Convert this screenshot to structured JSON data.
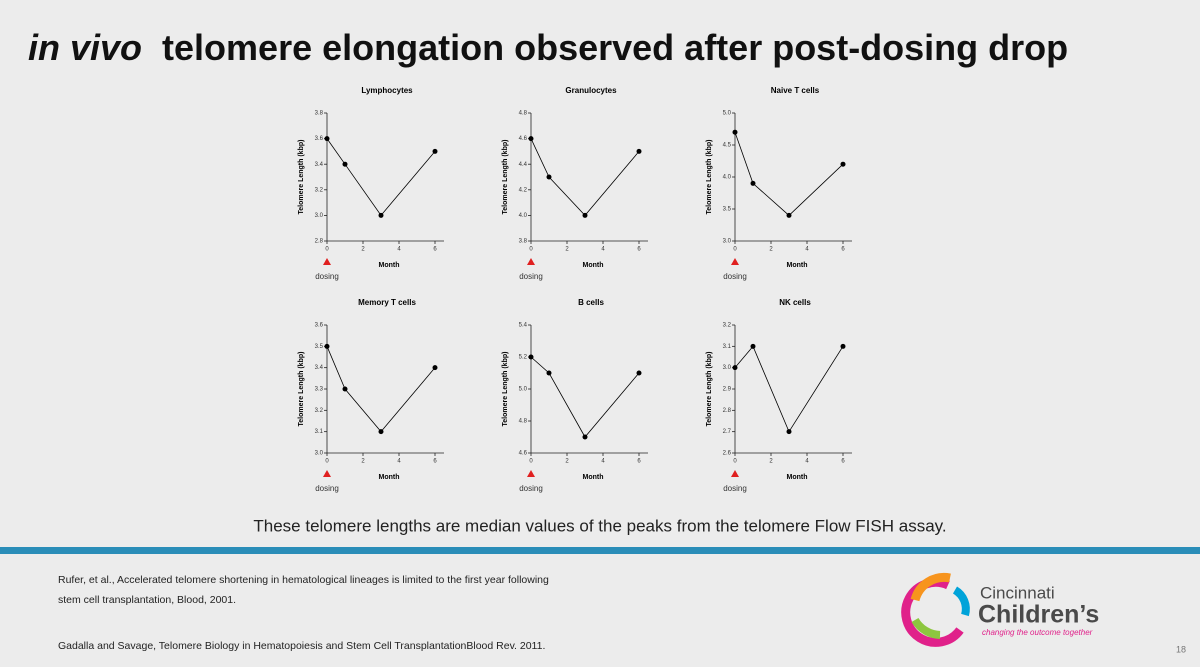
{
  "slide": {
    "title_italic": "in vivo",
    "title_rest": "telomere elongation observed after post-dosing drop",
    "caption": "These telomere lengths are median values of the peaks from the telomere Flow FISH assay.",
    "references": [
      "Rufer, et al., Accelerated telomere shortening in hematological lineages is limited to the first year following",
      "stem cell transplantation, Blood, 2001.",
      "Gadalla and Savage, Telomere Biology in Hematopoiesis and Stem Cell TransplantationBlood Rev. 2011."
    ],
    "logo": {
      "name1": "Cincinnati",
      "name2": "Children’s",
      "tagline": "changing the outcome together"
    },
    "page_number": "18"
  },
  "chart_data": [
    {
      "type": "line",
      "title": "Lymphocytes",
      "x": [
        0,
        1,
        3,
        6
      ],
      "values": [
        3.6,
        3.4,
        3.0,
        3.5
      ],
      "color": "#000000",
      "xlim": [
        0,
        6.5
      ],
      "xticks": [
        0,
        2,
        4,
        6
      ],
      "ylim": [
        2.8,
        3.8
      ],
      "yticks": [
        2.8,
        {
          "value": 3,
          "label": "3.0"
        },
        3.2,
        3.4,
        3.6,
        3.8
      ],
      "x_label": "Month",
      "y_label": "Telomere Length (kbp)",
      "annotation": "dosing"
    },
    {
      "type": "line",
      "title": "Granulocytes",
      "x": [
        0,
        1,
        3,
        6
      ],
      "values": [
        4.6,
        4.3,
        4.0,
        4.5
      ],
      "color": "#000000",
      "xlim": [
        0,
        6.5
      ],
      "xticks": [
        0,
        2,
        4,
        6
      ],
      "ylim": [
        3.8,
        4.8
      ],
      "yticks": [
        3.8,
        {
          "value": 4,
          "label": "4.0"
        },
        4.2,
        4.4,
        4.6,
        4.8
      ],
      "x_label": "Month",
      "y_label": "Telomere Length (kbp)",
      "annotation": "dosing"
    },
    {
      "type": "line",
      "title": "Naive T cells",
      "x": [
        0,
        1,
        3,
        6
      ],
      "values": [
        4.7,
        3.9,
        3.4,
        4.2
      ],
      "color": "#000000",
      "xlim": [
        0,
        6.5
      ],
      "xticks": [
        0,
        2,
        4,
        6
      ],
      "ylim": [
        3.0,
        5.0
      ],
      "yticks": [
        {
          "value": 3,
          "label": "3.0"
        },
        3.5,
        {
          "value": 4,
          "label": "4.0"
        },
        4.5,
        {
          "value": 5,
          "label": "5.0"
        }
      ],
      "x_label": "Month",
      "y_label": "Telomere Length (kbp)",
      "annotation": "dosing"
    },
    {
      "type": "line",
      "title": "Memory T cells",
      "x": [
        0,
        1,
        3,
        6
      ],
      "values": [
        3.5,
        3.3,
        3.1,
        3.4
      ],
      "color": "#000000",
      "xlim": [
        0,
        6.5
      ],
      "xticks": [
        0,
        2,
        4,
        6
      ],
      "ylim": [
        3.0,
        3.6
      ],
      "yticks": [
        {
          "value": 3,
          "label": "3.0"
        },
        3.1,
        3.2,
        3.3,
        3.4,
        3.5,
        3.6
      ],
      "x_label": "Month",
      "y_label": "Telomere Length (kbp)",
      "annotation": "dosing"
    },
    {
      "type": "line",
      "title": "B cells",
      "x": [
        0,
        1,
        3,
        6
      ],
      "values": [
        5.2,
        5.1,
        4.7,
        5.1
      ],
      "color": "#000000",
      "xlim": [
        0,
        6.5
      ],
      "xticks": [
        0,
        2,
        4,
        6
      ],
      "ylim": [
        4.6,
        5.4
      ],
      "yticks": [
        4.6,
        4.8,
        {
          "value": 5,
          "label": "5.0"
        },
        5.2,
        5.4
      ],
      "x_label": "Month",
      "y_label": "Telomere Length (kbp)",
      "annotation": "dosing"
    },
    {
      "type": "line",
      "title": "NK cells",
      "x": [
        0,
        1,
        3,
        6
      ],
      "values": [
        3.0,
        3.1,
        2.7,
        3.1
      ],
      "color": "#000000",
      "xlim": [
        0,
        6.5
      ],
      "xticks": [
        0,
        2,
        4,
        6
      ],
      "ylim": [
        2.6,
        3.2
      ],
      "yticks": [
        2.6,
        2.7,
        2.8,
        2.9,
        {
          "value": 3,
          "label": "3.0"
        },
        3.1,
        3.2
      ],
      "x_label": "Month",
      "y_label": "Telomere Length (kbp)",
      "annotation": "dosing"
    }
  ]
}
